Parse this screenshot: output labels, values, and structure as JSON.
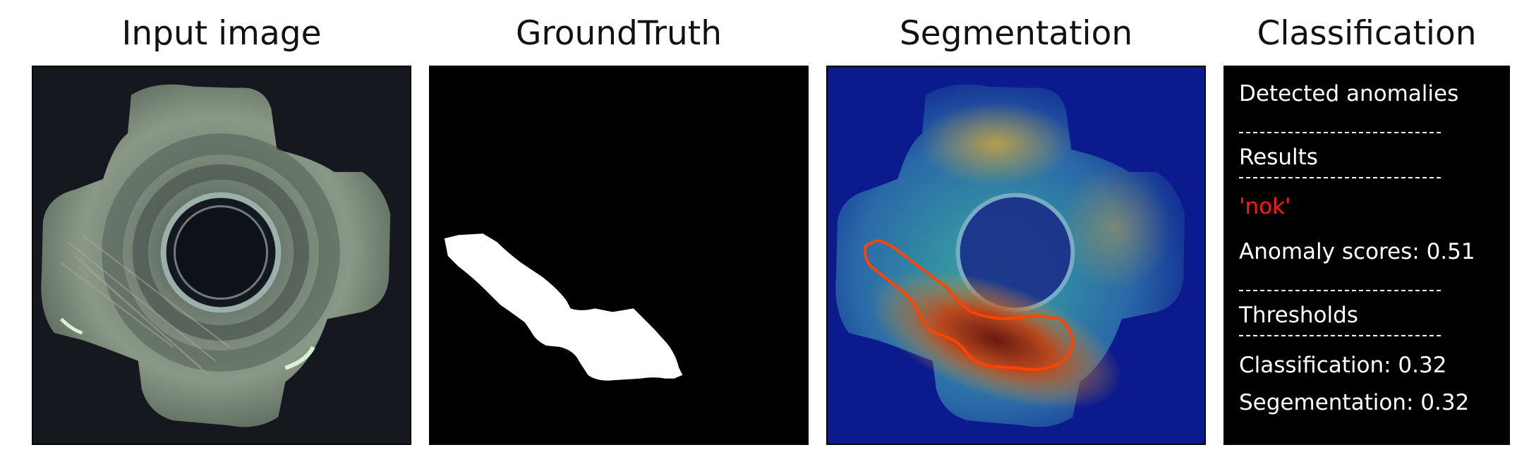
{
  "panels": {
    "input": {
      "title": "Input image",
      "icon": "hex-nut-photo"
    },
    "ground_truth": {
      "title": "GroundTruth",
      "icon": "defect-mask"
    },
    "segmentation": {
      "title": "Segmentation",
      "icon": "anomaly-heatmap-overlay"
    },
    "classification": {
      "title": "Classification",
      "detected_label": "Detected anomalies",
      "results_label": "Results",
      "prediction": "'nok'",
      "anomaly_scores": "Anomaly scores: 0.51",
      "thresholds_label": "Thresholds",
      "classification_threshold": "Classification: 0.32",
      "segmentation_threshold": "Segementation: 0.32"
    }
  },
  "colors": {
    "background": "#ffffff",
    "panel_border": "#000000",
    "nut_background": "#16181f",
    "nut_metal": "#7c8a7d",
    "mask": "#ffffff",
    "heatmap_cold": "#0b1a8c",
    "heatmap_warm": "#e8b040",
    "heatmap_hot": "#c02010",
    "contour": "#ff4400",
    "prediction_text": "#ff1a1a"
  }
}
